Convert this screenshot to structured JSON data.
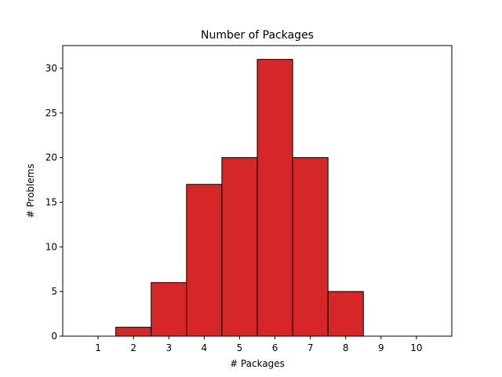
{
  "chart_data": {
    "type": "bar",
    "title": "Number of Packages",
    "xlabel": "# Packages",
    "ylabel": "# Problems",
    "categories": [
      "1",
      "2",
      "3",
      "4",
      "5",
      "6",
      "7",
      "8",
      "9",
      "10"
    ],
    "values": [
      0,
      1,
      6,
      17,
      20,
      31,
      20,
      5,
      0,
      0
    ],
    "ylim": [
      0,
      32.55
    ],
    "yticks": [
      "0",
      "5",
      "10",
      "15",
      "20",
      "25",
      "30"
    ],
    "grid": false,
    "bar_color": "#d62728",
    "edge_color": "#000000"
  }
}
